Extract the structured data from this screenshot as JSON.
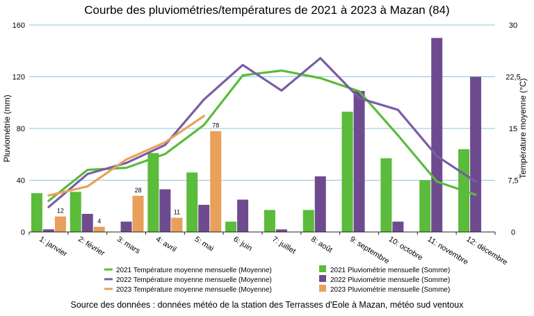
{
  "chart_data": {
    "type": "bar",
    "title": "Courbe des pluviométries/températures de 2021 à 2023 à Mazan (84)",
    "ylabel": "Pluviométrie (mm)",
    "y2label": "Température moyenne (°C)",
    "ylim": [
      0,
      160
    ],
    "y2lim": [
      0,
      30
    ],
    "yticks": [
      "0",
      "40",
      "80",
      "120",
      "160"
    ],
    "y2ticks": [
      "0",
      "7,5",
      "15",
      "22,5",
      "30"
    ],
    "grid": true,
    "legend_position": "bottom",
    "categories": [
      "1: janvier",
      "2: février",
      "3: mars",
      "4: avril",
      "5: mai",
      "6: juin",
      "7: juillet",
      "8: août",
      "9: septembre",
      "10: octobre",
      "11: novembre",
      "12: décembre"
    ],
    "bar_series": [
      {
        "name": "2021 Pluviométrie mensuelle (Somme)",
        "color": "#5bbb3a",
        "values": [
          30,
          31,
          0,
          61,
          46,
          8,
          17,
          17,
          93,
          57,
          40,
          64
        ]
      },
      {
        "name": "2022 Pluviométrie mensuelle (Somme)",
        "color": "#6e4b8f",
        "values": [
          2,
          14,
          8,
          33,
          21,
          25,
          2,
          43,
          109,
          8,
          150,
          120
        ]
      },
      {
        "name": "2023 Pluviométrie mensuelle (Somme)",
        "color": "#e9a05a",
        "values": [
          12,
          4,
          28,
          11,
          78,
          null,
          null,
          null,
          null,
          null,
          null,
          null
        ]
      }
    ],
    "line_series": [
      {
        "name": "2021 Température moyenne mensuelle (Moyenne)",
        "color": "#5bbb3a",
        "values": [
          4.5,
          9.0,
          9.3,
          11.3,
          15.5,
          22.7,
          23.4,
          22.3,
          20.4,
          14.0,
          7.3,
          5.4
        ]
      },
      {
        "name": "2022 Température moyenne mensuelle (Moyenne)",
        "color": "#7a5ca6",
        "values": [
          3.6,
          8.4,
          10.0,
          12.6,
          19.2,
          24.2,
          20.5,
          25.2,
          19.4,
          17.7,
          11.0,
          7.3
        ]
      },
      {
        "name": "2023 Température moyenne mensuelle (Moyenne)",
        "color": "#e9a05a",
        "values": [
          5.3,
          6.6,
          10.5,
          13.0,
          16.8,
          null,
          null,
          null,
          null,
          null,
          null,
          null
        ]
      }
    ],
    "data_labels": {
      "series": "2023 Pluviométrie mensuelle (Somme)",
      "values": [
        "12",
        "4",
        "28",
        "11",
        "78"
      ]
    }
  },
  "source": "Source des données : données météo de la station des Terrasses d'Eole à Mazan, météo sud ventoux"
}
